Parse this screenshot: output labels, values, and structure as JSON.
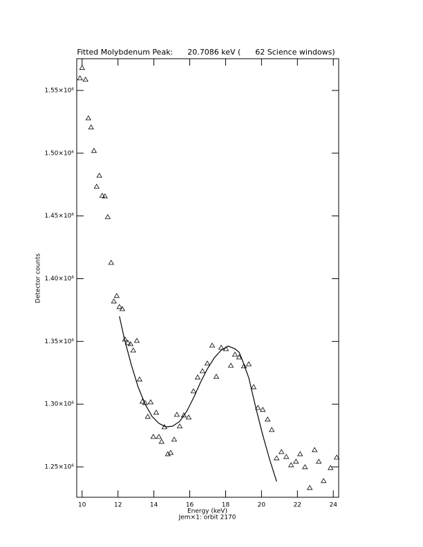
{
  "chart_data": {
    "type": "scatter",
    "title": "Fitted Molybdenum Peak:      20.7086 keV (      62 Science windows)",
    "xlabel": "Energy (keV)",
    "subtitle": "Jem×1: orbit 2170",
    "ylabel": "Detector counts",
    "xlim": [
      9.7,
      24.3
    ],
    "ylim": [
      1225800,
      1575300
    ],
    "xticks": [
      10,
      12,
      14,
      16,
      18,
      20,
      22,
      24
    ],
    "yticks": [
      {
        "value": 1250000,
        "label": "1.25×10⁶"
      },
      {
        "value": 1300000,
        "label": "1.30×10⁶"
      },
      {
        "value": 1350000,
        "label": "1.35×10⁶"
      },
      {
        "value": 1400000,
        "label": "1.40×10⁶"
      },
      {
        "value": 1450000,
        "label": "1.45×10⁶"
      },
      {
        "value": 1500000,
        "label": "1.50×10⁶"
      },
      {
        "value": 1550000,
        "label": "1.55×10⁶"
      }
    ],
    "color": "#000000",
    "x": [
      9.88,
      10.0,
      10.19,
      10.35,
      10.5,
      10.66,
      10.81,
      10.96,
      11.12,
      11.27,
      11.43,
      11.62,
      11.77,
      11.93,
      12.08,
      12.24,
      12.39,
      12.55,
      12.7,
      12.85,
      13.05,
      13.2,
      13.36,
      13.51,
      13.66,
      13.82,
      13.97,
      14.13,
      14.28,
      14.43,
      14.59,
      14.78,
      14.94,
      15.13,
      15.28,
      15.44,
      15.67,
      15.94,
      16.21,
      16.44,
      16.71,
      16.98,
      17.25,
      17.48,
      17.75,
      18.02,
      18.29,
      18.52,
      18.75,
      19.02,
      19.29,
      19.56,
      19.8,
      20.07,
      20.34,
      20.57,
      20.84,
      21.11,
      21.38,
      21.65,
      21.92,
      22.15,
      22.42,
      22.69,
      22.96,
      23.19,
      23.46,
      23.85,
      24.19
    ],
    "values": [
      1559900,
      1568200,
      1558800,
      1528000,
      1520800,
      1502100,
      1473500,
      1482300,
      1466300,
      1465800,
      1449300,
      1412900,
      1382100,
      1386500,
      1377700,
      1376000,
      1351800,
      1349100,
      1348000,
      1343000,
      1350700,
      1319900,
      1302300,
      1301200,
      1290200,
      1301700,
      1274200,
      1293500,
      1274200,
      1270300,
      1281900,
      1260400,
      1261500,
      1272000,
      1291800,
      1282500,
      1291300,
      1289600,
      1310500,
      1321500,
      1326500,
      1332600,
      1346900,
      1322100,
      1345200,
      1344100,
      1330900,
      1339700,
      1337500,
      1330400,
      1332000,
      1313800,
      1297300,
      1295700,
      1288000,
      1279700,
      1257100,
      1262100,
      1258200,
      1251600,
      1254400,
      1260400,
      1250000,
      1233500,
      1263700,
      1254400,
      1239000,
      1249400,
      1257700
    ],
    "fit": {
      "x": [
        12.08,
        12.35,
        12.74,
        13.12,
        13.51,
        13.9,
        14.28,
        14.67,
        15.05,
        15.44,
        15.82,
        16.21,
        16.59,
        16.98,
        17.37,
        17.75,
        18.14,
        18.52,
        18.75,
        18.91,
        19.29,
        19.68,
        20.07,
        20.45,
        20.84
      ],
      "values": [
        1370000,
        1352400,
        1331500,
        1313800,
        1300100,
        1290200,
        1284700,
        1281900,
        1282500,
        1286300,
        1294000,
        1305000,
        1317100,
        1328100,
        1337000,
        1343000,
        1346300,
        1344100,
        1341400,
        1335900,
        1321000,
        1297300,
        1275300,
        1256000,
        1238400
      ]
    }
  }
}
